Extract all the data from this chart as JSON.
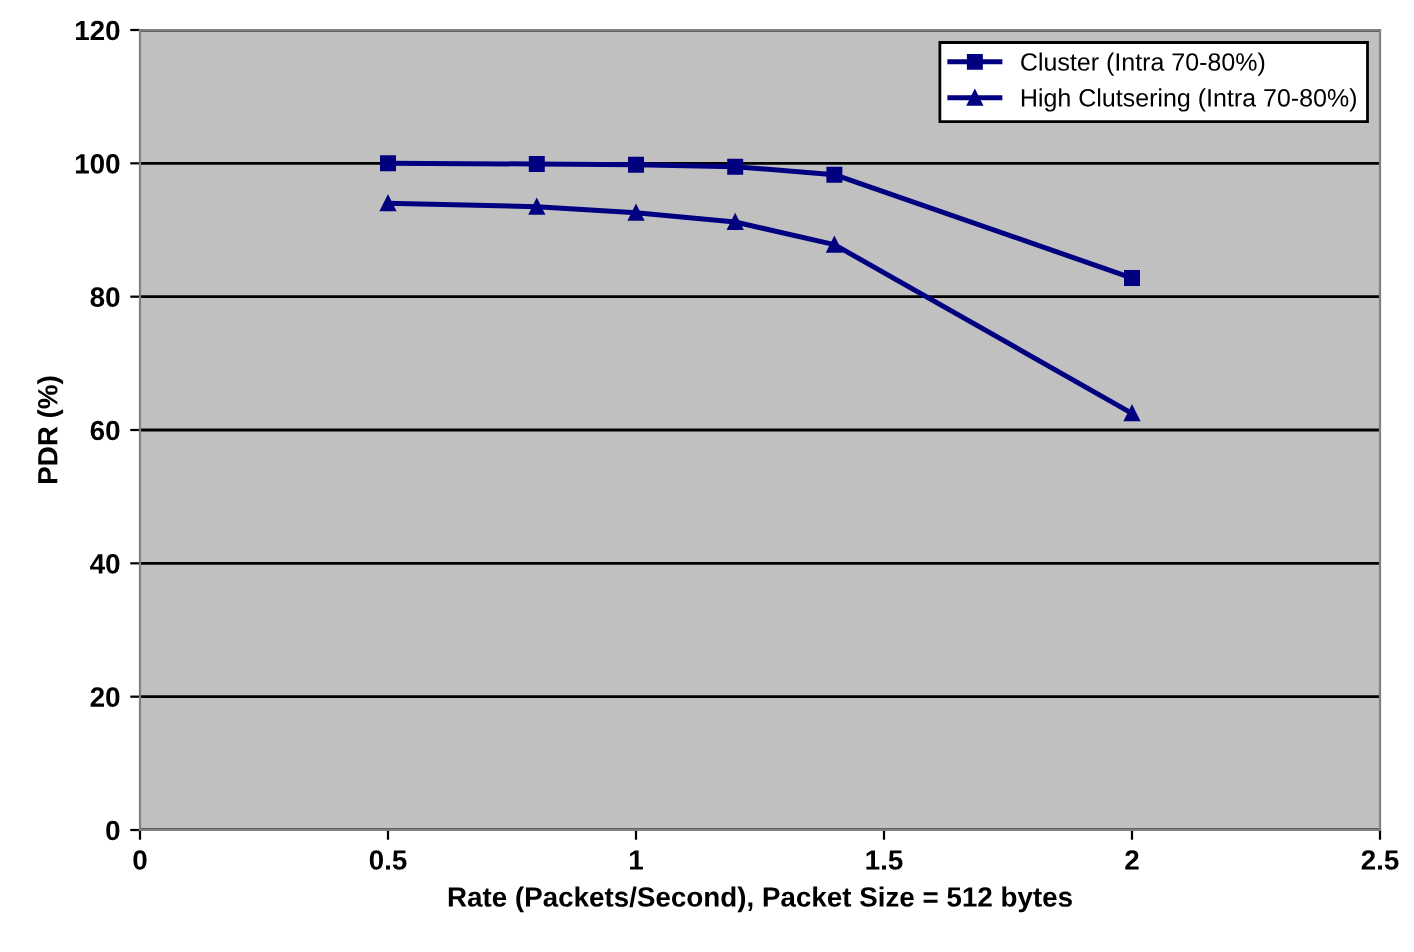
{
  "chart_data": {
    "type": "line",
    "xlabel": "Rate (Packets/Second), Packet Size = 512 bytes",
    "ylabel": "PDR (%)",
    "x": [
      0.5,
      0.8,
      1.0,
      1.2,
      1.4,
      2.0
    ],
    "series": [
      {
        "name": "Cluster (Intra 70-80%)",
        "color": "#000080",
        "marker": "square",
        "values": [
          100,
          99.9,
          99.8,
          99.5,
          98.3,
          82.8
        ]
      },
      {
        "name": "High Clutsering (Intra 70-80%)",
        "color": "#000080",
        "marker": "triangle",
        "values": [
          94.0,
          93.5,
          92.6,
          91.2,
          87.8,
          62.5
        ]
      }
    ],
    "xlim": [
      0,
      2.5
    ],
    "xticks": [
      0,
      0.5,
      1,
      1.5,
      2,
      2.5
    ],
    "ylim": [
      0,
      120
    ],
    "yticks": [
      0,
      20,
      40,
      60,
      80,
      100,
      120
    ],
    "grid": "y",
    "legend": "top right"
  }
}
